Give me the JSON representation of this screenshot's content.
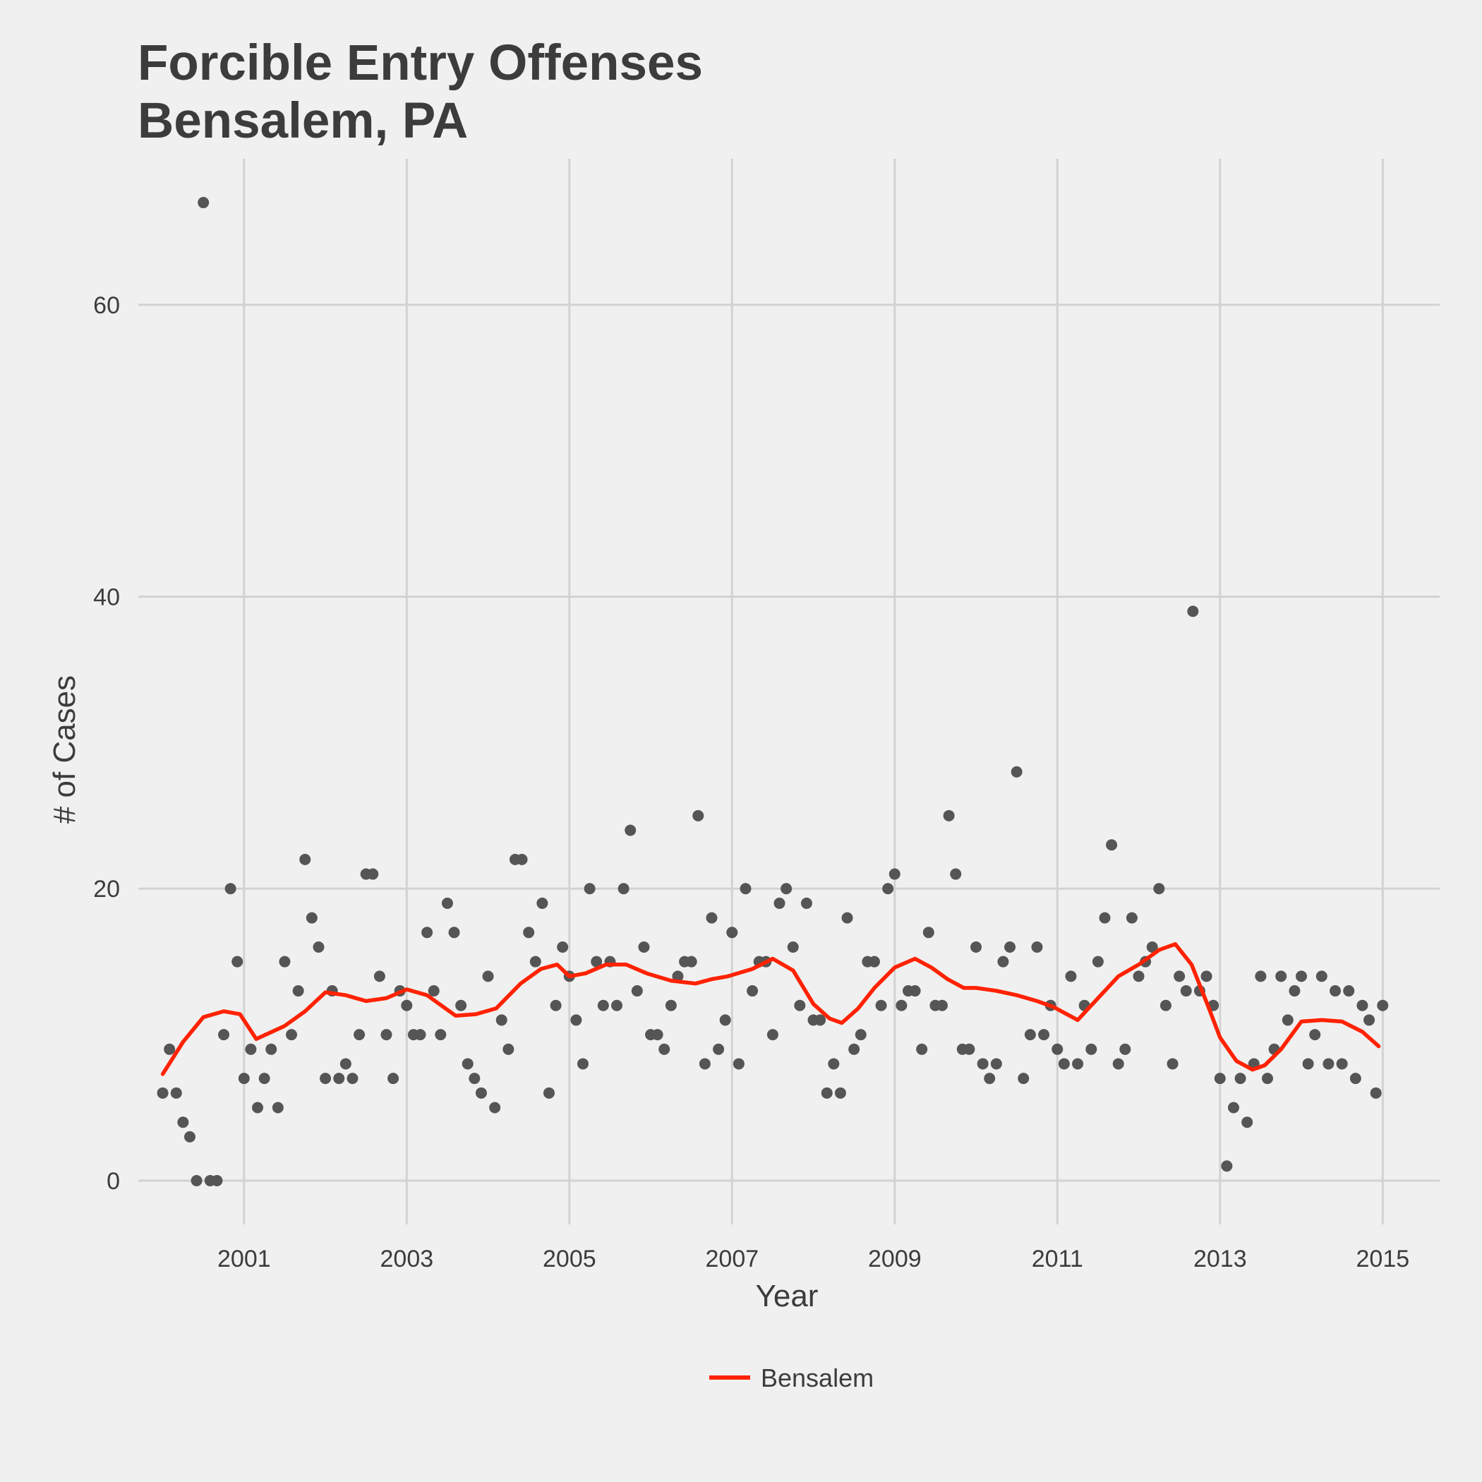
{
  "chart_data": {
    "type": "scatter",
    "title": [
      "Forcible Entry Offenses",
      "Bensalem, PA"
    ],
    "xlabel": "Year",
    "ylabel": "# of Cases",
    "xlim": [
      1999.7,
      2015.7
    ],
    "ylim": [
      -3,
      70
    ],
    "x_ticks": [
      2001,
      2003,
      2005,
      2007,
      2009,
      2011,
      2013,
      2015
    ],
    "y_ticks": [
      0,
      20,
      40,
      60
    ],
    "grid": true,
    "legend": {
      "position": "bottom",
      "entries": [
        "Bensalem"
      ]
    },
    "colors": {
      "points": "#555555",
      "line": "#ff2200",
      "background": "#f0f0f0",
      "grid": "#d2d2d2"
    },
    "points": {
      "x_start": 2000.0,
      "x_step": 0.08333,
      "y": [
        6,
        9,
        6,
        4,
        3,
        0,
        67,
        0,
        0,
        10,
        20,
        15,
        7,
        9,
        5,
        7,
        9,
        5,
        15,
        10,
        13,
        22,
        18,
        16,
        7,
        13,
        7,
        8,
        7,
        10,
        21,
        21,
        14,
        10,
        7,
        13,
        12,
        10,
        10,
        17,
        13,
        10,
        19,
        17,
        12,
        8,
        7,
        6,
        14,
        5,
        11,
        9,
        22,
        22,
        17,
        15,
        19,
        6,
        12,
        16,
        14,
        11,
        8,
        20,
        15,
        12,
        15,
        12,
        20,
        24,
        13,
        16,
        10,
        10,
        9,
        12,
        14,
        15,
        15,
        25,
        8,
        18,
        9,
        11,
        17,
        8,
        20,
        13,
        15,
        15,
        10,
        19,
        20,
        16,
        12,
        19,
        11,
        11,
        6,
        8,
        6,
        18,
        9,
        10,
        15,
        15,
        12,
        20,
        21,
        12,
        13,
        13,
        9,
        17,
        12,
        12,
        25,
        21,
        9,
        9,
        16,
        8,
        7,
        8,
        15,
        16,
        28,
        7,
        10,
        16,
        10,
        12,
        9,
        8,
        14,
        8,
        12,
        9,
        15,
        18,
        23,
        8,
        9,
        18,
        14,
        15,
        16,
        20,
        12,
        8,
        14,
        13,
        39,
        13,
        14,
        12,
        7,
        1,
        5,
        7,
        4,
        8,
        14,
        7,
        9,
        14,
        11,
        13,
        14,
        8,
        10,
        14,
        8,
        13,
        8,
        13,
        7,
        12,
        11,
        6,
        12
      ]
    },
    "series": [
      {
        "name": "Bensalem",
        "x": [
          2000.0,
          2000.25,
          2000.5,
          2000.75,
          2000.95,
          2001.15,
          2001.5,
          2001.75,
          2002.0,
          2002.25,
          2002.5,
          2002.75,
          2003.0,
          2003.25,
          2003.6,
          2003.85,
          2004.1,
          2004.4,
          2004.65,
          2004.85,
          2005.0,
          2005.2,
          2005.45,
          2005.7,
          2005.95,
          2006.25,
          2006.55,
          2006.75,
          2006.95,
          2007.25,
          2007.5,
          2007.75,
          2008.0,
          2008.2,
          2008.35,
          2008.55,
          2008.75,
          2009.0,
          2009.25,
          2009.45,
          2009.65,
          2009.85,
          2010.0,
          2010.25,
          2010.5,
          2010.75,
          2010.95,
          2011.25,
          2011.5,
          2011.75,
          2012.0,
          2012.25,
          2012.45,
          2012.65,
          2012.85,
          2013.0,
          2013.2,
          2013.4,
          2013.55,
          2013.75,
          2014.0,
          2014.25,
          2014.5,
          2014.75,
          2014.95
        ],
        "y": [
          7.3,
          9.5,
          11.2,
          11.6,
          11.4,
          9.7,
          10.6,
          11.6,
          12.9,
          12.7,
          12.3,
          12.5,
          13.1,
          12.7,
          11.3,
          11.4,
          11.8,
          13.5,
          14.5,
          14.8,
          14.0,
          14.2,
          14.8,
          14.8,
          14.2,
          13.7,
          13.5,
          13.8,
          14.0,
          14.5,
          15.2,
          14.4,
          12.1,
          11.1,
          10.8,
          11.8,
          13.2,
          14.6,
          15.2,
          14.6,
          13.8,
          13.2,
          13.2,
          13.0,
          12.7,
          12.3,
          11.9,
          11.0,
          12.5,
          14.0,
          14.8,
          15.8,
          16.2,
          14.8,
          12.0,
          9.8,
          8.2,
          7.6,
          7.9,
          9.0,
          10.9,
          11.0,
          10.9,
          10.2,
          9.2
        ]
      }
    ]
  }
}
